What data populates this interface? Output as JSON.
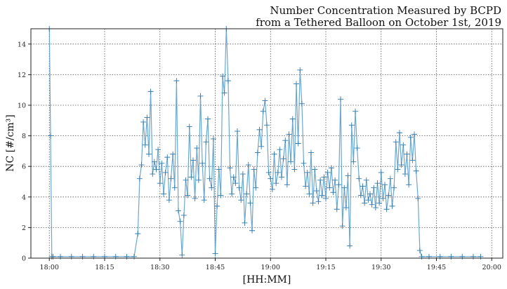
{
  "chart_data": {
    "type": "line",
    "title_line1": "Number Concentration Measured by BCPD",
    "title_line2": "from a Tethered Balloon on October 1st, 2019",
    "xlabel": "[HH:MM]",
    "ylabel": "NC [#/cm³]",
    "xlim": [
      "17:55",
      "20:03"
    ],
    "ylim": [
      0,
      15
    ],
    "grid": true,
    "marker": "plus",
    "color": "#5b9ec9",
    "marker_color": "#2f78ad",
    "x_ticks": [
      "18:00",
      "18:15",
      "18:30",
      "18:45",
      "19:00",
      "19:15",
      "19:30",
      "19:45",
      "20:00"
    ],
    "y_ticks": [
      0,
      2,
      4,
      6,
      8,
      10,
      12,
      14
    ],
    "series": [
      {
        "x": [
          "18:00",
          "18:00",
          "18:00",
          "18:01",
          "18:03",
          "18:06",
          "18:09",
          "18:12",
          "18:15",
          "18:18",
          "18:21",
          "18:23",
          "18:24",
          "18:24",
          "18:25",
          "18:25",
          "18:26",
          "18:26",
          "18:27",
          "18:27",
          "18:28",
          "18:28",
          "18:29",
          "18:29",
          "18:30",
          "18:30",
          "18:31",
          "18:31",
          "18:32",
          "18:32",
          "18:33",
          "18:33",
          "18:34",
          "18:34",
          "18:35",
          "18:35",
          "18:36",
          "18:36",
          "18:37",
          "18:37",
          "18:38",
          "18:38",
          "18:39",
          "18:39",
          "18:40",
          "18:40",
          "18:41",
          "18:41",
          "18:42",
          "18:42",
          "18:43",
          "18:43",
          "18:44",
          "18:44",
          "18:45",
          "18:45",
          "18:46",
          "18:46",
          "18:47",
          "18:47",
          "18:48",
          "18:48",
          "18:49",
          "18:49",
          "18:50",
          "18:50",
          "18:51",
          "18:51",
          "18:52",
          "18:52",
          "18:53",
          "18:53",
          "18:54",
          "18:54",
          "18:55",
          "18:55",
          "18:56",
          "18:56",
          "18:57",
          "18:57",
          "18:58",
          "18:58",
          "18:59",
          "18:59",
          "19:00",
          "19:00",
          "19:01",
          "19:01",
          "19:02",
          "19:02",
          "19:03",
          "19:03",
          "19:04",
          "19:04",
          "19:05",
          "19:05",
          "19:06",
          "19:06",
          "19:07",
          "19:07",
          "19:08",
          "19:08",
          "19:09",
          "19:09",
          "19:10",
          "19:10",
          "19:11",
          "19:11",
          "19:12",
          "19:12",
          "19:13",
          "19:13",
          "19:14",
          "19:14",
          "19:15",
          "19:15",
          "19:16",
          "19:16",
          "19:17",
          "19:17",
          "19:18",
          "19:18",
          "19:19",
          "19:19",
          "19:20",
          "19:20",
          "19:21",
          "19:21",
          "19:22",
          "19:22",
          "19:23",
          "19:23",
          "19:24",
          "19:24",
          "19:25",
          "19:25",
          "19:26",
          "19:26",
          "19:27",
          "19:27",
          "19:28",
          "19:28",
          "19:29",
          "19:29",
          "19:30",
          "19:30",
          "19:31",
          "19:31",
          "19:32",
          "19:32",
          "19:33",
          "19:33",
          "19:34",
          "19:34",
          "19:35",
          "19:35",
          "19:36",
          "19:36",
          "19:37",
          "19:37",
          "19:38",
          "19:38",
          "19:39",
          "19:39",
          "19:40",
          "19:40",
          "19:41",
          "19:43",
          "19:46",
          "19:49",
          "19:52",
          "19:55",
          "19:57"
        ],
        "y": [
          15,
          8,
          0.1,
          0.1,
          0.1,
          0.1,
          0.1,
          0.1,
          0.1,
          0.1,
          0.1,
          0.1,
          1.6,
          5.2,
          6.1,
          8.9,
          7.4,
          9.2,
          6.8,
          10.9,
          5.5,
          6.3,
          5.8,
          7.1,
          4.9,
          6.2,
          4.2,
          5.6,
          6.6,
          3.8,
          5.2,
          6.8,
          4.6,
          11.6,
          3.1,
          2.4,
          0.2,
          2.8,
          5.1,
          4.1,
          8.6,
          5.3,
          6.4,
          3.9,
          7.2,
          5.1,
          10.6,
          6.2,
          3.8,
          7.6,
          9.1,
          5.2,
          4.6,
          7.8,
          0.3,
          3.4,
          5.8,
          4.1,
          11.9,
          10.8,
          15,
          11.6,
          5.9,
          4.2,
          5.3,
          4.9,
          8.3,
          4.6,
          3.8,
          5.5,
          2.3,
          4.2,
          6.1,
          3.6,
          1.8,
          5.8,
          4.6,
          6.9,
          8.4,
          7.3,
          9.6,
          10.3,
          8.7,
          5.6,
          5.2,
          4.5,
          6.8,
          4.9,
          5.6,
          7.1,
          5.3,
          6.5,
          7.7,
          4.8,
          8.1,
          6.3,
          9.1,
          5.8,
          11.4,
          7.5,
          12.3,
          10.1,
          6.2,
          4.7,
          5.6,
          4.2,
          6.9,
          3.6,
          5.8,
          4.4,
          3.7,
          5.1,
          4.1,
          5.3,
          3.9,
          5.6,
          4.6,
          5.9,
          4.3,
          5.1,
          3.2,
          4.8,
          10.4,
          2.1,
          4.6,
          3.3,
          5.4,
          0.8,
          8.7,
          6.3,
          9.6,
          7.2,
          5.2,
          4.1,
          4.7,
          3.6,
          5.1,
          3.8,
          4.2,
          3.5,
          4.6,
          3.3,
          4.9,
          3.6,
          5.6,
          3.9,
          4.8,
          3.2,
          4.1,
          5.2,
          3.4,
          4.6,
          7.6,
          5.8,
          8.2,
          6.1,
          7.4,
          5.5,
          6.8,
          4.8,
          7.9,
          6.4,
          8.1,
          5.7,
          3.9,
          0.5,
          0.1,
          0.1,
          0.1,
          0.1,
          0.1,
          0.1,
          0.1
        ]
      }
    ]
  }
}
